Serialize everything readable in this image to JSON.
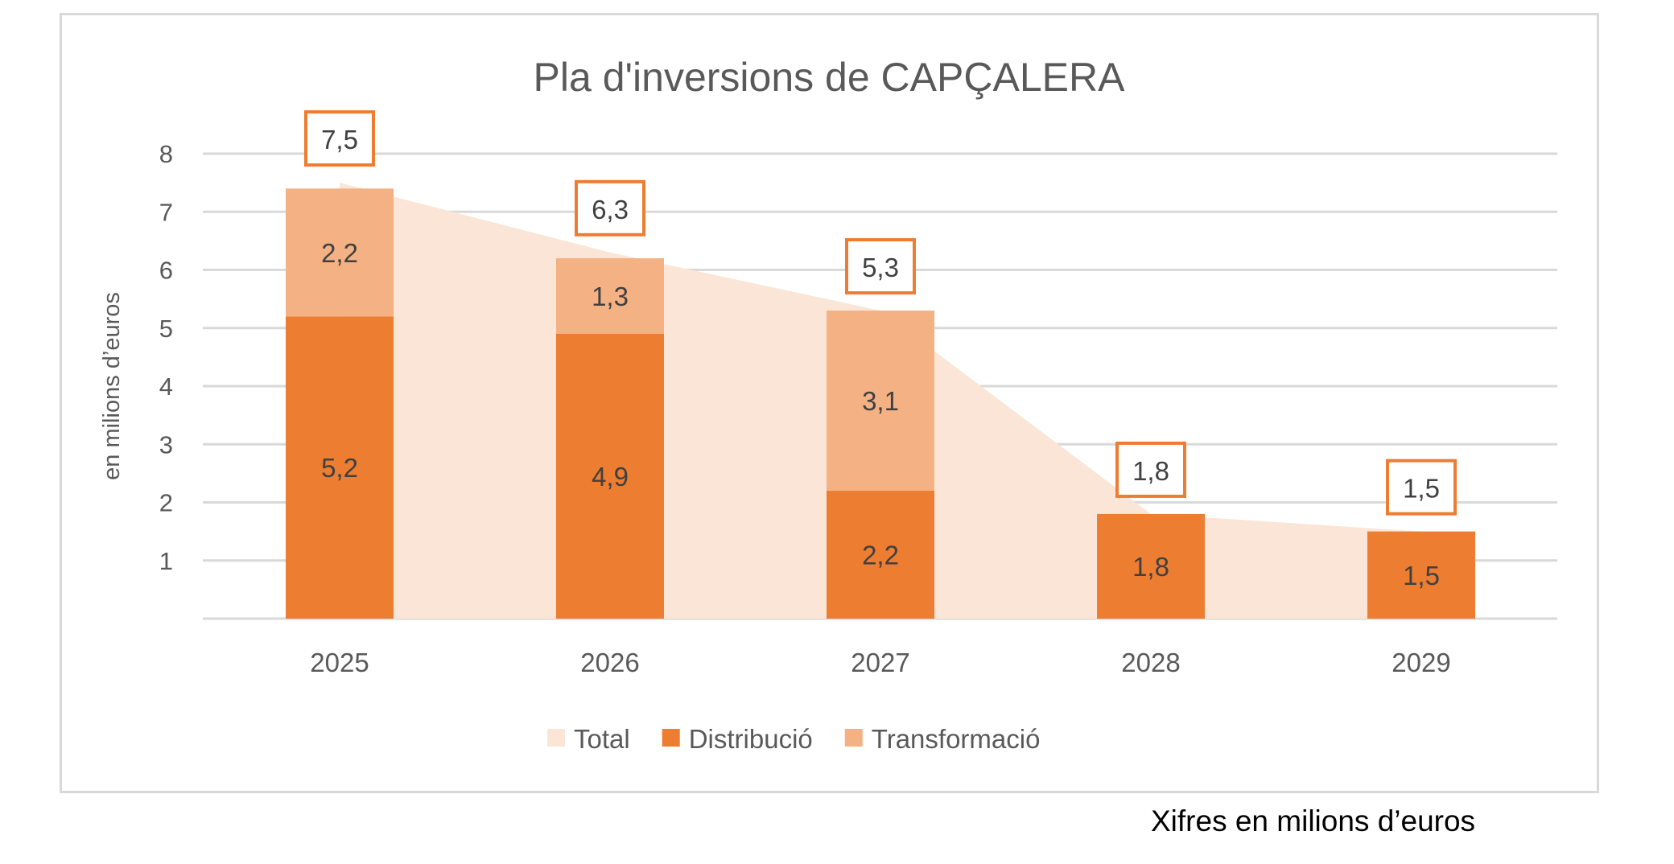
{
  "chart_data": {
    "type": "bar",
    "stacked": true,
    "title": "Pla d'inversions de CAPÇALERA",
    "xlabel": "",
    "ylabel": "en milions d’euros",
    "ylim": [
      0,
      8
    ],
    "yticks": [
      "1",
      "2",
      "3",
      "4",
      "5",
      "6",
      "7",
      "8"
    ],
    "grid": true,
    "legend_position": "bottom",
    "categories": [
      "2025",
      "2026",
      "2027",
      "2028",
      "2029"
    ],
    "series": [
      {
        "name": "Total",
        "type": "area",
        "color": "#FBE5D6",
        "values": [
          7.5,
          6.3,
          5.3,
          1.8,
          1.5
        ],
        "labels": [
          "7,5",
          "6,3",
          "5,3",
          "1,8",
          "1,5"
        ]
      },
      {
        "name": "Distribució",
        "type": "bar",
        "color": "#ED7D31",
        "values": [
          5.2,
          4.9,
          2.2,
          1.8,
          1.5
        ],
        "labels": [
          "5,2",
          "4,9",
          "2,2",
          "1,8",
          "1,5"
        ]
      },
      {
        "name": "Transformació",
        "type": "bar",
        "color": "#F4B183",
        "values": [
          2.2,
          1.3,
          3.1,
          null,
          null
        ],
        "labels": [
          "2,2",
          "1,3",
          "3,1",
          "",
          ""
        ]
      }
    ],
    "label_box_color": "#ED7D31"
  },
  "footer": "Xifres en milions d’euros"
}
